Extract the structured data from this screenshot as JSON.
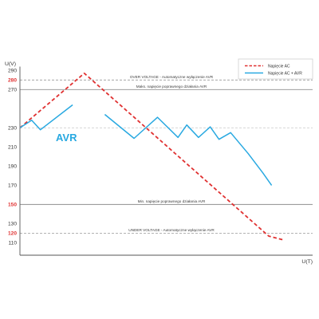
{
  "chart_data": {
    "type": "line",
    "xlabel": "U(T)",
    "ylabel": "U(V)",
    "xlim": [
      0,
      100
    ],
    "ylim": [
      97,
      294
    ],
    "y_ticks": [
      290,
      280,
      270,
      230,
      210,
      190,
      170,
      150,
      130,
      120,
      110
    ],
    "highlighted_ticks": [
      280,
      150,
      120
    ],
    "highlight_color": "#e03131",
    "grid": false,
    "legend_position": "top-right",
    "series": [
      {
        "name": "Napięcie AC",
        "color": "#e03131",
        "line_style": "dashed",
        "segments": [
          [
            [
              0,
              230
            ],
            [
              22,
              287
            ],
            [
              85,
              117
            ],
            [
              90,
              113
            ]
          ]
        ]
      },
      {
        "name": "Napięcie AC + AVR",
        "color": "#29a9e1",
        "line_style": "solid",
        "segments": [
          [
            [
              0,
              230
            ],
            [
              4,
              238
            ],
            [
              7,
              228
            ],
            [
              18,
              254
            ]
          ],
          [
            [
              29,
              244
            ],
            [
              39,
              219
            ],
            [
              47,
              241
            ],
            [
              54,
              220
            ],
            [
              57,
              233
            ],
            [
              61,
              220
            ],
            [
              65,
              231
            ],
            [
              68,
              218
            ],
            [
              72,
              225
            ],
            [
              78,
              203
            ],
            [
              83,
              183
            ],
            [
              86,
              170
            ]
          ]
        ]
      }
    ],
    "reference_lines": [
      {
        "value": 280,
        "line_style": "dashed",
        "label": "OVER VOLTAGE - Automatyczne wyłączenie AVR"
      },
      {
        "value": 270,
        "line_style": "solid",
        "label": "Maks. napięcie poprawnego działania AVR"
      },
      {
        "value": 230,
        "line_style": "dashed"
      },
      {
        "value": 150,
        "line_style": "solid",
        "label": "Min. napięcie poprawnego działania AVR"
      },
      {
        "value": 120,
        "line_style": "dashed",
        "label": "UNDER VOLTAGE - Automatyczne wyłączenie AVR"
      }
    ],
    "annotations": [
      {
        "text": "AVR",
        "color": "#29a9e1"
      }
    ]
  }
}
